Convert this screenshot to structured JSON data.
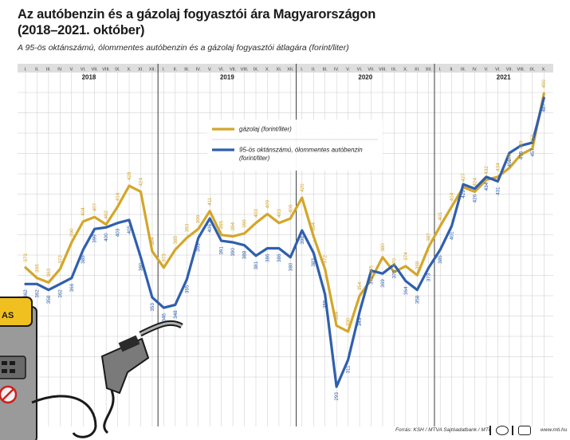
{
  "header": {
    "title_line1": "Az autóbenzin és a gázolaj fogyasztói ára Magyarországon",
    "title_line2": "(2018–2021. október)",
    "subtitle": "A 95-ös oktánszámú, ólommentes autóbenzin és a gázolaj fogyasztói átlagára (forint/liter)"
  },
  "footer": {
    "source": "Forrás: KSH / MTVA Sajtóadatbank / MTI",
    "site": "www.mti.hu"
  },
  "colors": {
    "diesel": "#d4a62a",
    "petrol": "#2f5fae",
    "grid": "#c9c9c9",
    "month_band": "#dedede",
    "year_divider": "#3a3a3a"
  },
  "chart_data": {
    "type": "line",
    "title": "Az autóbenzin és a gázolaj fogyasztói ára Magyarországon (2018–2021. október)",
    "xlabel": "",
    "ylabel": "forint/liter",
    "ylim": [
      285,
      495
    ],
    "years": [
      {
        "label": "2018",
        "start_index": 0
      },
      {
        "label": "2019",
        "start_index": 12
      },
      {
        "label": "2020",
        "start_index": 24
      },
      {
        "label": "2021",
        "start_index": 36
      }
    ],
    "months": [
      "I.",
      "II.",
      "III.",
      "IV.",
      "V.",
      "VI.",
      "VII.",
      "VIII.",
      "IX.",
      "X.",
      "XI.",
      "XII.",
      "I.",
      "II.",
      "III.",
      "IV.",
      "V.",
      "VI.",
      "VII.",
      "VIII.",
      "IX.",
      "X.",
      "XI.",
      "XII.",
      "I.",
      "II.",
      "III.",
      "IV.",
      "V.",
      "VI.",
      "VII.",
      "VIII.",
      "IX.",
      "X.",
      "XI.",
      "XII.",
      "I.",
      "II.",
      "III.",
      "IV.",
      "V.",
      "VI.",
      "VII.",
      "VIII.",
      "IX.",
      "X."
    ],
    "series": [
      {
        "name": "gázolaj (forint/liter)",
        "key": "diesel",
        "values": [
          373,
          366,
          363,
          372,
          390,
          404,
          407,
          402,
          414,
          428,
          424,
          384,
          373,
          385,
          393,
          399,
          411,
          395,
          394,
          396,
          403,
          409,
          403,
          406,
          420,
          394,
          372,
          334,
          330,
          354,
          365,
          380,
          370,
          374,
          368,
          387,
          401,
          414,
          427,
          424,
          432,
          434,
          440,
          449,
          453,
          490
        ]
      },
      {
        "name": "95-ös oktánszámú, ólommentes autóbenzin (forint/liter)",
        "key": "petrol",
        "values": [
          362,
          362,
          358,
          362,
          366,
          385,
          399,
          400,
          403,
          405,
          380,
          353,
          346,
          348,
          365,
          393,
          406,
          391,
          390,
          388,
          381,
          386,
          386,
          380,
          398,
          383,
          355,
          293,
          311,
          343,
          371,
          369,
          375,
          364,
          358,
          373,
          385,
          401,
          429,
          426,
          434,
          431,
          450,
          455,
          457,
          487
        ]
      }
    ],
    "legend": {
      "placement": "upper-middle",
      "entries": [
        {
          "key": "diesel",
          "label": "gázolaj (forint/liter)"
        },
        {
          "key": "petrol",
          "label_line1": "95-ös oktánszámú, ólommentes autóbenzin",
          "label_line2": "(forint/liter)"
        }
      ]
    },
    "grid": true
  }
}
